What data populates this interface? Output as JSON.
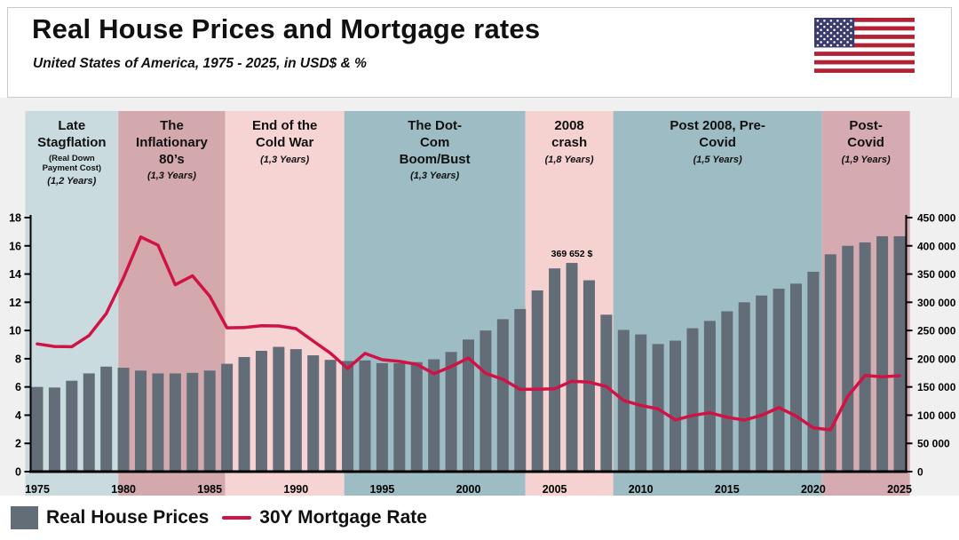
{
  "header": {
    "title": "Real House Prices and Mortgage rates",
    "subtitle": "United States of America, 1975 - 2025, in USD$ & %"
  },
  "icons": {
    "flag": "us-flag"
  },
  "colors": {
    "chart_background": "#f0f0f1",
    "bar": "#626d78",
    "line": "#d01245",
    "axis": "#000000"
  },
  "chart_data": {
    "type": "bar",
    "title": "Real House Prices and Mortgage rates",
    "subtitle": "United States of America, 1975 - 2025, in USD$ & %",
    "x": [
      1975,
      1976,
      1977,
      1978,
      1979,
      1980,
      1981,
      1982,
      1983,
      1984,
      1985,
      1986,
      1987,
      1988,
      1989,
      1990,
      1991,
      1992,
      1993,
      1994,
      1995,
      1996,
      1997,
      1998,
      1999,
      2000,
      2001,
      2002,
      2003,
      2004,
      2005,
      2006,
      2007,
      2008,
      2009,
      2010,
      2011,
      2012,
      2013,
      2014,
      2015,
      2016,
      2017,
      2018,
      2019,
      2020,
      2021,
      2022,
      2023,
      2024,
      2025
    ],
    "series": [
      {
        "name": "Real House Prices",
        "type": "bar",
        "axis": "right",
        "color": "#626d78",
        "values": [
          150000,
          149000,
          161000,
          174000,
          186000,
          184000,
          179000,
          174000,
          174000,
          175000,
          179000,
          191000,
          203000,
          214000,
          221000,
          217000,
          206000,
          198000,
          196000,
          197000,
          192000,
          192000,
          194000,
          199000,
          212000,
          234000,
          250000,
          270000,
          288000,
          321000,
          360000,
          369652,
          339000,
          278000,
          251000,
          243000,
          226000,
          232000,
          254000,
          267000,
          284000,
          300000,
          312000,
          324000,
          333000,
          354000,
          385000,
          400000,
          406000,
          417000,
          417000
        ]
      },
      {
        "name": "30Y Mortgage Rate",
        "type": "line",
        "axis": "left",
        "color": "#d01245",
        "values": [
          9.05,
          8.87,
          8.85,
          9.64,
          11.2,
          13.74,
          16.63,
          16.04,
          13.24,
          13.88,
          12.43,
          10.19,
          10.21,
          10.34,
          10.32,
          10.13,
          9.25,
          8.39,
          7.31,
          8.38,
          7.93,
          7.81,
          7.6,
          6.94,
          7.44,
          8.05,
          6.97,
          6.54,
          5.83,
          5.84,
          5.87,
          6.41,
          6.34,
          6.03,
          5.04,
          4.69,
          4.45,
          3.66,
          3.98,
          4.17,
          3.85,
          3.65,
          3.99,
          4.54,
          3.94,
          3.1,
          2.96,
          5.34,
          6.81,
          6.72,
          6.8
        ]
      }
    ],
    "left_axis": {
      "min": 0,
      "max": 18,
      "ticks": [
        0,
        2,
        4,
        6,
        8,
        10,
        12,
        14,
        16,
        18
      ]
    },
    "right_axis": {
      "min": 0,
      "max": 450000,
      "ticks": [
        0,
        50000,
        100000,
        150000,
        200000,
        250000,
        300000,
        350000,
        400000,
        450000
      ],
      "tick_labels": [
        "0",
        "50 000",
        "100 000",
        "150 000",
        "200 000",
        "250 000",
        "300 000",
        "350 000",
        "400 000",
        "450 000"
      ]
    },
    "x_ticks": [
      1975,
      1980,
      1985,
      1990,
      1995,
      2000,
      2005,
      2010,
      2015,
      2020,
      2025
    ],
    "annotation": {
      "year": 2006,
      "label": "369 652 $"
    },
    "grid": "off",
    "legend_position": "bottom-left",
    "eras": [
      {
        "title": "Late Stagflation",
        "note": "(Real Down Payment Cost)",
        "duration": "(1,2 Years)",
        "color": "#c9dbdf",
        "from": 1974.3,
        "to": 1979.7
      },
      {
        "title": "The Inflationary 80’s",
        "note": "",
        "duration": "(1,3 Years)",
        "color": "#d3a9ae",
        "from": 1979.7,
        "to": 1985.9
      },
      {
        "title": "End of the Cold War",
        "note": "",
        "duration": "(1,3 Years)",
        "color": "#f5d4d3",
        "from": 1985.9,
        "to": 1992.8
      },
      {
        "title": "The Dot-Com Boom/Bust",
        "note": "",
        "duration": "(1,3 Years)",
        "color": "#9dbcc3",
        "from": 1992.8,
        "to": 2003.3
      },
      {
        "title": "2008 crash",
        "note": "",
        "duration": "(1,8 Years)",
        "color": "#f5d2cf",
        "from": 2003.3,
        "to": 2008.4
      },
      {
        "title": "Post 2008, Pre-Covid",
        "note": "",
        "duration": "(1,5 Years)",
        "color": "#9dbcc3",
        "from": 2008.4,
        "to": 2020.5
      },
      {
        "title": "Post-Covid",
        "note": "",
        "duration": "(1,9 Years)",
        "color": "#d5abb1",
        "from": 2020.5,
        "to": 2025.6
      }
    ]
  },
  "legend": {
    "items": [
      {
        "label": "Real House Prices",
        "swatch": "bar"
      },
      {
        "label": "30Y Mortgage Rate",
        "swatch": "line"
      }
    ]
  }
}
